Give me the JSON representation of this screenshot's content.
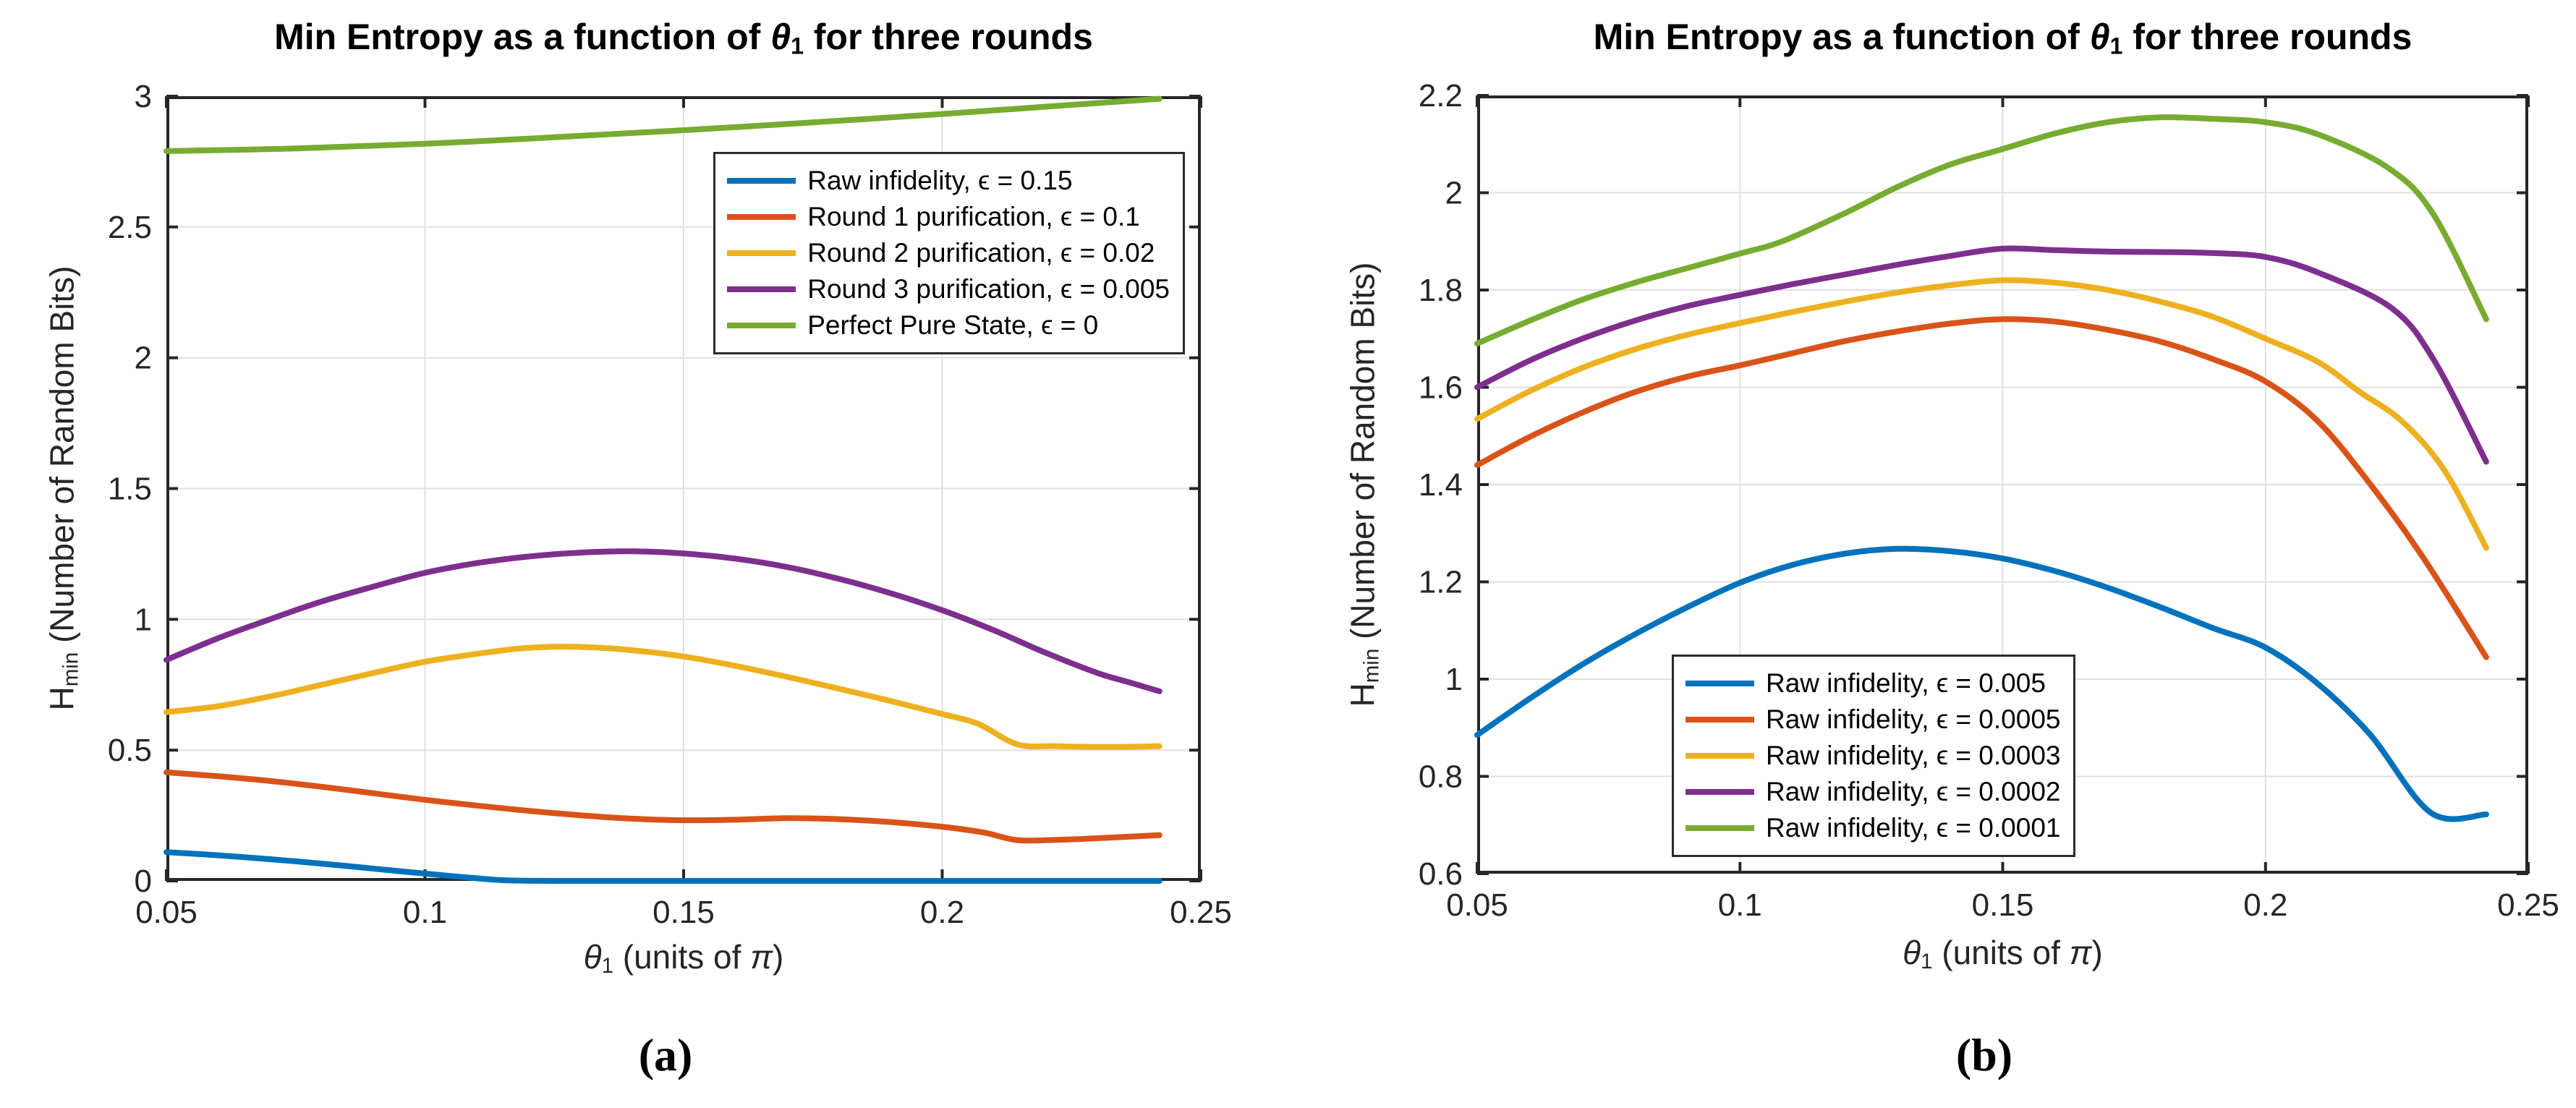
{
  "page": {
    "background": "#ffffff",
    "axis_color": "#262626",
    "grid_color": "#e0e0e0"
  },
  "panels": [
    {
      "caption": "(a)",
      "title": {
        "pre": "Min Entropy as a function of ",
        "theta": "θ",
        "sub": "1",
        "post": " for three rounds"
      },
      "xlabel": {
        "theta": "θ",
        "sub": "1",
        "mid": " (units of ",
        "pi": "π",
        "end": ")"
      },
      "ylabel": {
        "h": "H",
        "sub": "min",
        "post": " (Number of Random Bits)"
      }
    },
    {
      "caption": "(b)",
      "title": {
        "pre": "Min Entropy as a function of ",
        "theta": "θ",
        "sub": "1",
        "post": " for three rounds"
      },
      "xlabel": {
        "theta": "θ",
        "sub": "1",
        "mid": " (units of ",
        "pi": "π",
        "end": ")"
      },
      "ylabel": {
        "h": "H",
        "sub": "min",
        "post": " (Number of Random Bits)"
      }
    }
  ],
  "chart_data": [
    {
      "type": "line",
      "panel": "a",
      "title": "Min Entropy as a function of θ1 for three rounds",
      "xlabel": "θ1 (units of π)",
      "ylabel": "Hmin (Number of Random Bits)",
      "xlim": [
        0.05,
        0.25
      ],
      "ylim": [
        0,
        3
      ],
      "grid": true,
      "axis_color": "#262626",
      "grid_color": "#e0e0e0",
      "xticks": {
        "values": [
          0.05,
          0.1,
          0.15,
          0.2,
          0.25
        ],
        "labels": [
          "0.05",
          "0.1",
          "0.15",
          "0.2",
          "0.25"
        ]
      },
      "yticks": {
        "values": [
          0,
          0.5,
          1,
          1.5,
          2,
          2.5,
          3
        ],
        "labels": [
          "0",
          "0.5",
          "1",
          "1.5",
          "2",
          "2.5",
          "3"
        ]
      },
      "legend": {
        "position": {
          "right": 22,
          "top": 77
        }
      },
      "series": [
        {
          "id": "raw-eps-015",
          "name": "Raw infidelity, ϵ = 0.15",
          "color": "#0072BD",
          "x": [
            0.05,
            0.06,
            0.07,
            0.08,
            0.09,
            0.1,
            0.11,
            0.116,
            0.125,
            0.15,
            0.175,
            0.2,
            0.22,
            0.242
          ],
          "y": [
            0.11,
            0.098,
            0.083,
            0.066,
            0.047,
            0.028,
            0.01,
            0.002,
            0.0,
            0.0,
            0.0,
            0.0,
            0.0,
            0.0
          ]
        },
        {
          "id": "round1-eps-01",
          "name": "Round 1 purification, ϵ = 0.1",
          "color": "#D95319",
          "x": [
            0.05,
            0.06,
            0.07,
            0.08,
            0.09,
            0.1,
            0.11,
            0.12,
            0.13,
            0.14,
            0.15,
            0.16,
            0.17,
            0.18,
            0.19,
            0.2,
            0.208,
            0.2145,
            0.222,
            0.23,
            0.242
          ],
          "y": [
            0.415,
            0.4,
            0.382,
            0.36,
            0.335,
            0.31,
            0.288,
            0.268,
            0.251,
            0.238,
            0.232,
            0.234,
            0.24,
            0.236,
            0.225,
            0.207,
            0.185,
            0.156,
            0.157,
            0.163,
            0.175
          ]
        },
        {
          "id": "round2-eps-002",
          "name": "Round 2 purification, ϵ = 0.02",
          "color": "#EDB120",
          "x": [
            0.05,
            0.06,
            0.07,
            0.08,
            0.09,
            0.1,
            0.11,
            0.118,
            0.125,
            0.132,
            0.14,
            0.15,
            0.16,
            0.17,
            0.18,
            0.19,
            0.2,
            0.207,
            0.2145,
            0.222,
            0.232,
            0.242
          ],
          "y": [
            0.645,
            0.668,
            0.705,
            0.75,
            0.795,
            0.838,
            0.868,
            0.888,
            0.895,
            0.893,
            0.882,
            0.858,
            0.822,
            0.78,
            0.735,
            0.688,
            0.638,
            0.6,
            0.522,
            0.515,
            0.512,
            0.515
          ]
        },
        {
          "id": "round3-eps-0005",
          "name": "Round 3 purification, ϵ = 0.005",
          "color": "#7E2F8E",
          "x": [
            0.05,
            0.06,
            0.07,
            0.08,
            0.09,
            0.1,
            0.11,
            0.12,
            0.13,
            0.14,
            0.15,
            0.16,
            0.17,
            0.18,
            0.19,
            0.2,
            0.21,
            0.22,
            0.23,
            0.236,
            0.242
          ],
          "y": [
            0.845,
            0.928,
            1.0,
            1.068,
            1.125,
            1.178,
            1.215,
            1.24,
            1.255,
            1.26,
            1.252,
            1.232,
            1.2,
            1.155,
            1.1,
            1.035,
            0.958,
            0.872,
            0.795,
            0.76,
            0.725
          ]
        },
        {
          "id": "perfect-eps-0",
          "name": "Perfect Pure State, ϵ = 0",
          "color": "#77AC30",
          "x": [
            0.05,
            0.075,
            0.1,
            0.125,
            0.15,
            0.175,
            0.2,
            0.22,
            0.242
          ],
          "y": [
            2.79,
            2.8,
            2.818,
            2.843,
            2.87,
            2.9,
            2.932,
            2.96,
            2.99
          ]
        }
      ]
    },
    {
      "type": "line",
      "panel": "b",
      "title": "Min Entropy as a function of θ1 for three rounds",
      "xlabel": "θ1 (units of π)",
      "ylabel": "Hmin (Number of Random Bits)",
      "xlim": [
        0.05,
        0.25
      ],
      "ylim": [
        0.6,
        2.2
      ],
      "grid": true,
      "axis_color": "#262626",
      "grid_color": "#e0e0e0",
      "xticks": {
        "values": [
          0.05,
          0.1,
          0.15,
          0.2,
          0.25
        ],
        "labels": [
          "0.05",
          "0.1",
          "0.15",
          "0.2",
          "0.25"
        ]
      },
      "yticks": {
        "values": [
          0.6,
          0.8,
          1.0,
          1.2,
          1.4,
          1.6,
          1.8,
          2.0,
          2.2
        ],
        "labels": [
          "0.6",
          "0.8",
          "1",
          "1.2",
          "1.4",
          "1.6",
          "1.8",
          "2",
          "2.2"
        ]
      },
      "legend": {
        "position": {
          "left": 269,
          "top": 773
        }
      },
      "series": [
        {
          "id": "raw-eps-0005",
          "name": "Raw infidelity, ϵ = 0.005",
          "color": "#0072BD",
          "x": [
            0.05,
            0.06,
            0.07,
            0.08,
            0.09,
            0.1,
            0.11,
            0.12,
            0.13,
            0.14,
            0.15,
            0.16,
            0.17,
            0.18,
            0.19,
            0.2,
            0.21,
            0.22,
            0.2315,
            0.242
          ],
          "y": [
            0.885,
            0.96,
            1.03,
            1.092,
            1.148,
            1.198,
            1.235,
            1.258,
            1.268,
            1.263,
            1.248,
            1.222,
            1.188,
            1.148,
            1.105,
            1.065,
            0.99,
            0.885,
            0.725,
            0.722
          ]
        },
        {
          "id": "raw-eps-00005",
          "name": "Raw infidelity, ϵ = 0.0005",
          "color": "#D95319",
          "x": [
            0.05,
            0.06,
            0.07,
            0.08,
            0.09,
            0.1,
            0.11,
            0.12,
            0.13,
            0.14,
            0.15,
            0.16,
            0.17,
            0.18,
            0.19,
            0.2,
            0.21,
            0.22,
            0.23,
            0.242
          ],
          "y": [
            1.44,
            1.498,
            1.548,
            1.59,
            1.622,
            1.645,
            1.67,
            1.695,
            1.715,
            1.731,
            1.74,
            1.735,
            1.718,
            1.694,
            1.658,
            1.612,
            1.53,
            1.4,
            1.25,
            1.045
          ]
        },
        {
          "id": "raw-eps-00003",
          "name": "Raw infidelity, ϵ = 0.0003",
          "color": "#EDB120",
          "x": [
            0.05,
            0.06,
            0.07,
            0.08,
            0.09,
            0.1,
            0.11,
            0.12,
            0.13,
            0.14,
            0.15,
            0.16,
            0.17,
            0.18,
            0.19,
            0.2,
            0.21,
            0.218,
            0.226,
            0.234,
            0.242
          ],
          "y": [
            1.535,
            1.592,
            1.64,
            1.678,
            1.708,
            1.732,
            1.755,
            1.776,
            1.795,
            1.81,
            1.82,
            1.815,
            1.8,
            1.776,
            1.745,
            1.7,
            1.652,
            1.59,
            1.53,
            1.43,
            1.27
          ]
        },
        {
          "id": "raw-eps-00002",
          "name": "Raw infidelity, ϵ = 0.0002",
          "color": "#7E2F8E",
          "x": [
            0.05,
            0.06,
            0.07,
            0.08,
            0.09,
            0.1,
            0.11,
            0.12,
            0.13,
            0.14,
            0.15,
            0.16,
            0.17,
            0.18,
            0.19,
            0.2,
            0.21,
            0.224,
            0.232,
            0.242
          ],
          "y": [
            1.6,
            1.655,
            1.7,
            1.737,
            1.767,
            1.79,
            1.812,
            1.832,
            1.852,
            1.87,
            1.885,
            1.882,
            1.879,
            1.878,
            1.876,
            1.868,
            1.836,
            1.763,
            1.657,
            1.447
          ]
        },
        {
          "id": "raw-eps-00001",
          "name": "Raw infidelity, ϵ = 0.0001",
          "color": "#77AC30",
          "x": [
            0.05,
            0.06,
            0.07,
            0.08,
            0.09,
            0.1,
            0.108,
            0.12,
            0.13,
            0.14,
            0.15,
            0.16,
            0.17,
            0.18,
            0.19,
            0.2,
            0.21,
            0.2235,
            0.232,
            0.242
          ],
          "y": [
            1.69,
            1.737,
            1.78,
            1.815,
            1.845,
            1.875,
            1.9,
            1.958,
            2.012,
            2.058,
            2.09,
            2.122,
            2.145,
            2.155,
            2.152,
            2.145,
            2.12,
            2.05,
            1.955,
            1.74
          ]
        }
      ]
    }
  ]
}
